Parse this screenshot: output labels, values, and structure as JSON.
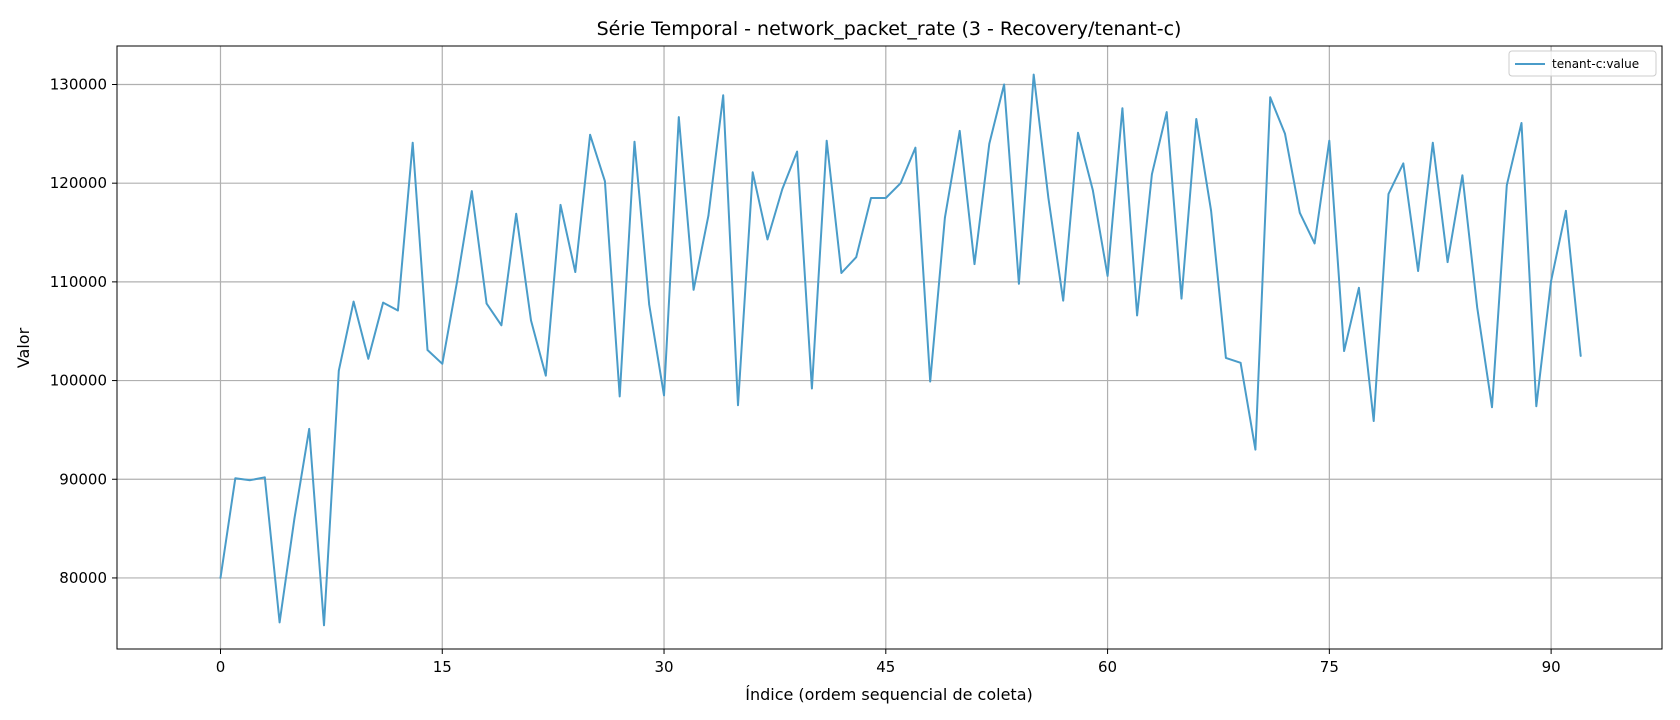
{
  "chart_data": {
    "type": "line",
    "title": "Série Temporal - network_packet_rate (3 - Recovery/tenant-c)",
    "xlabel": "Índice (ordem sequencial de coleta)",
    "ylabel": "Valor",
    "xlim": [
      -7,
      97.5
    ],
    "ylim": [
      72800,
      133900
    ],
    "xticks": [
      0,
      15,
      30,
      45,
      60,
      75,
      90
    ],
    "xtick_labels": [
      "0",
      "15",
      "30",
      "45",
      "60",
      "75",
      "90"
    ],
    "yticks": [
      80000,
      90000,
      100000,
      110000,
      120000,
      130000
    ],
    "ytick_labels": [
      "80000",
      "90000",
      "100000",
      "110000",
      "120000",
      "130000"
    ],
    "grid": true,
    "legend_position": "top-right",
    "series": [
      {
        "name": "tenant-c:value",
        "color": "#4a9cc9",
        "x": [
          0,
          1,
          2,
          3,
          4,
          5,
          6,
          7,
          8,
          9,
          10,
          11,
          12,
          13,
          14,
          15,
          16,
          17,
          18,
          19,
          20,
          21,
          22,
          23,
          24,
          25,
          26,
          27,
          28,
          29,
          30,
          31,
          32,
          33,
          34,
          35,
          36,
          37,
          38,
          39,
          40,
          41,
          42,
          43,
          44,
          45,
          46,
          47,
          48,
          49,
          50,
          51,
          52,
          53,
          54,
          55,
          56,
          57,
          58,
          59,
          60,
          61,
          62,
          63,
          64,
          65,
          66,
          67,
          68,
          69,
          70,
          71,
          72,
          73,
          74,
          75,
          76,
          77,
          78,
          79,
          80,
          81,
          82,
          83,
          84,
          85,
          86,
          87,
          88,
          89,
          90,
          91,
          92
        ],
        "values": [
          80000,
          90100,
          89900,
          90200,
          75500,
          86000,
          95100,
          75200,
          101000,
          108000,
          102200,
          107900,
          107100,
          124100,
          103100,
          101700,
          110000,
          119200,
          107800,
          105600,
          116900,
          106100,
          100500,
          117800,
          111000,
          124900,
          120200,
          98400,
          124200,
          107700,
          98500,
          126700,
          109200,
          116700,
          128900,
          97500,
          121100,
          114300,
          119400,
          123200,
          99200,
          124300,
          110900,
          112500,
          118500,
          118500,
          120000,
          123600,
          99900,
          116500,
          125300,
          111800,
          124000,
          130000,
          109800,
          131000,
          118500,
          108100,
          125100,
          119300,
          110600,
          127600,
          106600,
          120900,
          127200,
          108300,
          126500,
          117200,
          102300,
          101800,
          93000,
          128700,
          125000,
          117000,
          113900,
          124300,
          103000,
          109400,
          95900,
          118900,
          122000,
          111100,
          124100,
          112000,
          120800,
          107400,
          97300,
          119800,
          126100,
          97400,
          110100,
          117200,
          102500
        ]
      }
    ]
  }
}
